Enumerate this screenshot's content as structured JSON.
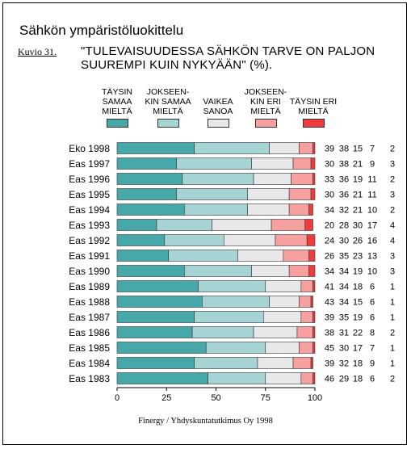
{
  "title": "Sähkön ympäristöluokittelu",
  "figure_label": "Kuvio 31.",
  "subtitle": "\"TULEVAISUUDESSA SÄHKÖN TARVE ON PALJON SUUREMPI KUIN NYKYÄÄN\" (%).",
  "source": "Finergy / Yhdyskuntatutkimus Oy 1998",
  "legend": [
    {
      "label": "TÄYSIN SAMAA MIELTÄ",
      "color": "#46a8a8"
    },
    {
      "label": "JOKSEEN-KIN SAMAA MIELTÄ",
      "color": "#a6d4d4"
    },
    {
      "label": "VAIKEA SANOA",
      "color": "#e8e8e8"
    },
    {
      "label": "JOKSEEN-KIN ERI MIELTÄ",
      "color": "#f7a0a0"
    },
    {
      "label": "TÄYSIN ERI MIELTÄ",
      "color": "#f03c3c"
    }
  ],
  "chart_data": {
    "type": "bar",
    "stacked": true,
    "orientation": "horizontal",
    "categories": [
      "Eko 1998",
      "Eas 1997",
      "Eas 1996",
      "Eas 1995",
      "Eas 1994",
      "Eas 1993",
      "Eas 1992",
      "Eas 1991",
      "Eas 1990",
      "Eas 1989",
      "Eas 1988",
      "Eas 1987",
      "Eas 1986",
      "Eas 1985",
      "Eas 1984",
      "Eas 1983"
    ],
    "series": [
      {
        "name": "TÄYSIN SAMAA MIELTÄ",
        "values": [
          39,
          30,
          33,
          30,
          34,
          20,
          24,
          26,
          34,
          41,
          43,
          39,
          38,
          45,
          39,
          46
        ]
      },
      {
        "name": "JOKSEEN-KIN SAMAA MIELTÄ",
        "values": [
          38,
          38,
          36,
          36,
          32,
          28,
          30,
          35,
          34,
          34,
          34,
          35,
          31,
          30,
          32,
          29
        ]
      },
      {
        "name": "VAIKEA SANOA",
        "values": [
          15,
          21,
          19,
          21,
          21,
          30,
          26,
          23,
          19,
          18,
          15,
          19,
          22,
          17,
          18,
          18
        ]
      },
      {
        "name": "JOKSEEN-KIN ERI MIELTÄ",
        "values": [
          7,
          9,
          11,
          11,
          10,
          17,
          16,
          13,
          10,
          6,
          6,
          6,
          8,
          7,
          9,
          6
        ]
      },
      {
        "name": "TÄYSIN ERI MIELTÄ",
        "values": [
          2,
          3,
          2,
          3,
          2,
          4,
          4,
          3,
          3,
          1,
          1,
          1,
          2,
          1,
          1,
          2
        ]
      }
    ],
    "xlim": [
      0,
      100
    ],
    "xticks": [
      0,
      25,
      50,
      75,
      100
    ],
    "value_labels": true,
    "grid": false
  }
}
